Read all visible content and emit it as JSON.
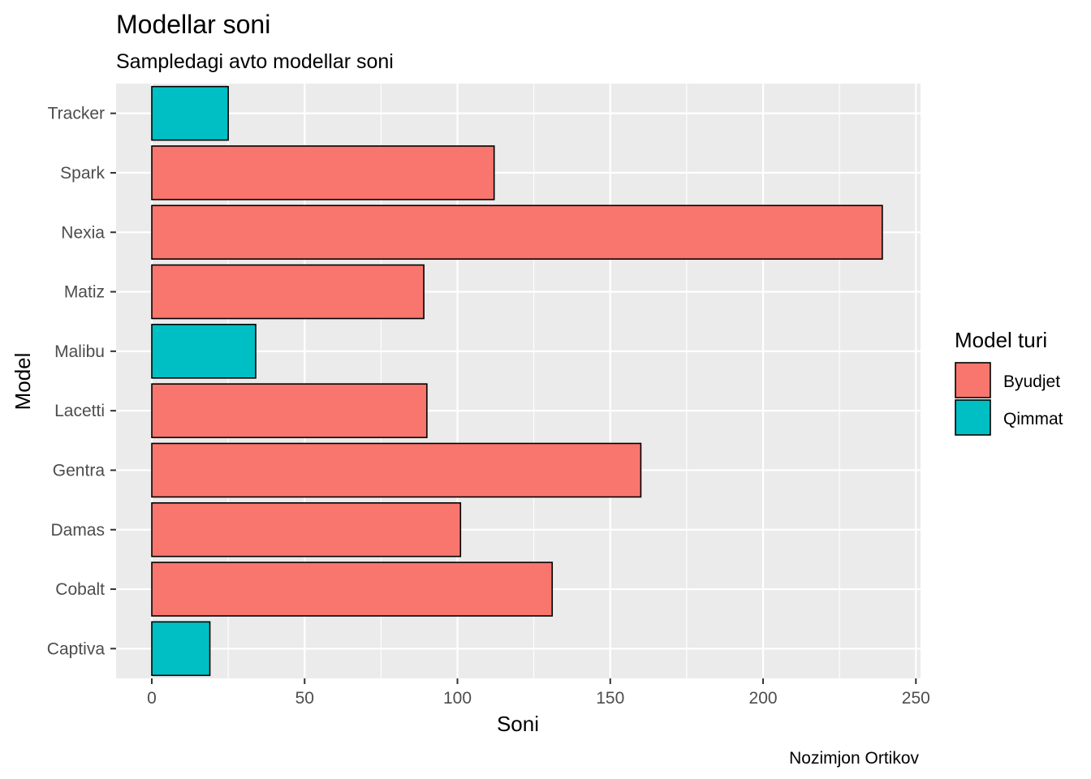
{
  "chart_data": {
    "type": "bar",
    "orientation": "horizontal",
    "title": "Modellar soni",
    "subtitle": "Sampledagi avto modellar soni",
    "xlabel": "Soni",
    "ylabel": "Model",
    "caption": "Nozimjon Ortikov",
    "xlim": [
      0,
      250
    ],
    "xticks": [
      "0",
      "50",
      "100",
      "150",
      "200",
      "250"
    ],
    "categories": [
      "Captiva",
      "Cobalt",
      "Damas",
      "Gentra",
      "Lacetti",
      "Malibu",
      "Matiz",
      "Nexia",
      "Spark",
      "Tracker"
    ],
    "values": [
      19,
      131,
      101,
      160,
      90,
      34,
      89,
      239,
      112,
      25
    ],
    "groups": [
      "Qimmat",
      "Byudjet",
      "Byudjet",
      "Byudjet",
      "Byudjet",
      "Qimmat",
      "Byudjet",
      "Byudjet",
      "Byudjet",
      "Qimmat"
    ],
    "legend": {
      "title": "Model turi",
      "placement": "right",
      "entries": [
        {
          "name": "Byudjet",
          "color": "#F8766D"
        },
        {
          "name": "Qimmat",
          "color": "#00BFC4"
        }
      ]
    },
    "colors": {
      "panel": "#EBEBEB",
      "grid": "#FFFFFF",
      "bar_outline": "#000000"
    },
    "grid": true
  }
}
